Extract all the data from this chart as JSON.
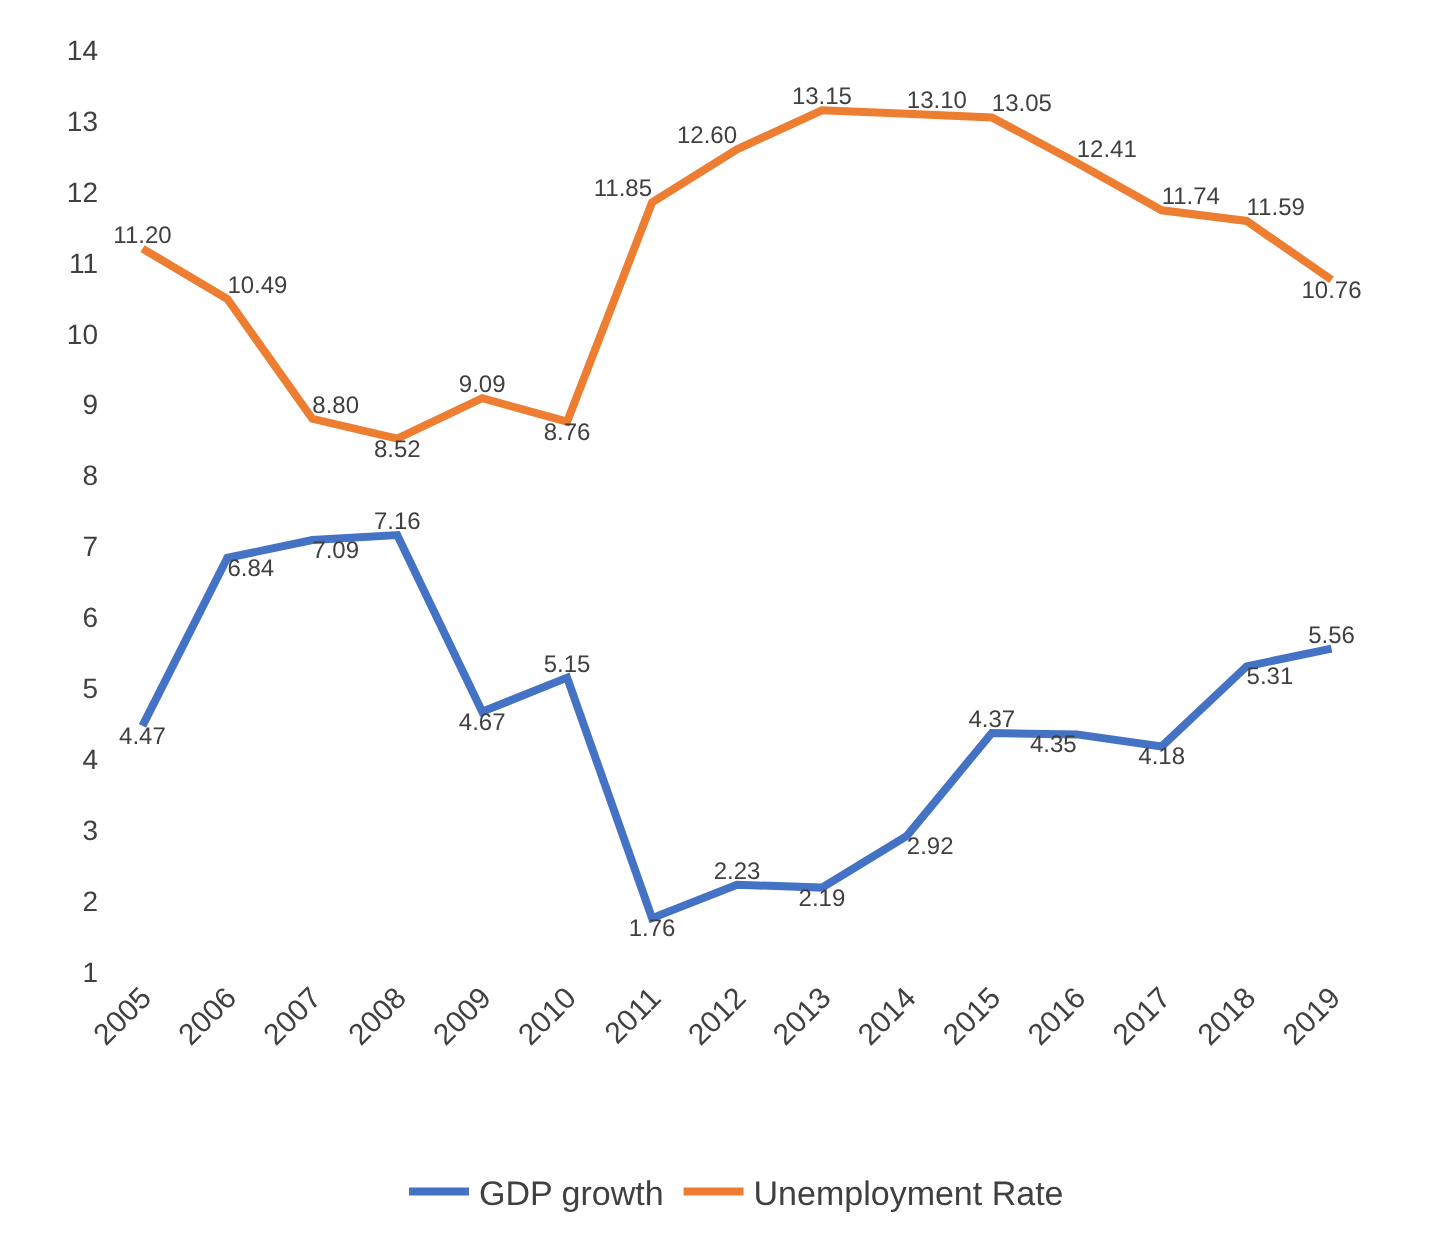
{
  "chart_data": {
    "type": "line",
    "categories": [
      "2005",
      "2006",
      "2007",
      "2008",
      "2009",
      "2010",
      "2011",
      "2012",
      "2013",
      "2014",
      "2015",
      "2016",
      "2017",
      "2018",
      "2019"
    ],
    "series": [
      {
        "name": "GDP growth",
        "color": "#4472c4",
        "values": [
          4.47,
          6.84,
          7.09,
          7.16,
          4.67,
          5.15,
          1.76,
          2.23,
          2.19,
          2.92,
          4.37,
          4.35,
          4.18,
          5.31,
          5.56
        ],
        "value_labels": [
          "4.47",
          "6.84",
          "7.09",
          "7.16",
          "4.67",
          "5.15",
          "1.76",
          "2.23",
          "2.19",
          "2.92",
          "4.37",
          "4.35",
          "4.18",
          "5.31",
          "5.56"
        ]
      },
      {
        "name": "Unemployment Rate",
        "color": "#ed7d31",
        "values": [
          11.2,
          10.49,
          8.8,
          8.52,
          9.09,
          8.76,
          11.85,
          12.6,
          13.15,
          13.1,
          13.05,
          12.41,
          11.74,
          11.59,
          10.76
        ],
        "value_labels": [
          "11.20",
          "10.49",
          "8.80",
          "8.52",
          "9.09",
          "8.76",
          "11.85",
          "12.60",
          "13.15",
          "13.10",
          "13.05",
          "12.41",
          "11.74",
          "11.59",
          "10.76"
        ]
      }
    ],
    "ylim": [
      1,
      14
    ],
    "yticks": [
      1,
      2,
      3,
      4,
      5,
      6,
      7,
      8,
      9,
      10,
      11,
      12,
      13,
      14
    ],
    "grid": false,
    "legend": "bottom",
    "marker": "none",
    "line_style": "solid"
  }
}
